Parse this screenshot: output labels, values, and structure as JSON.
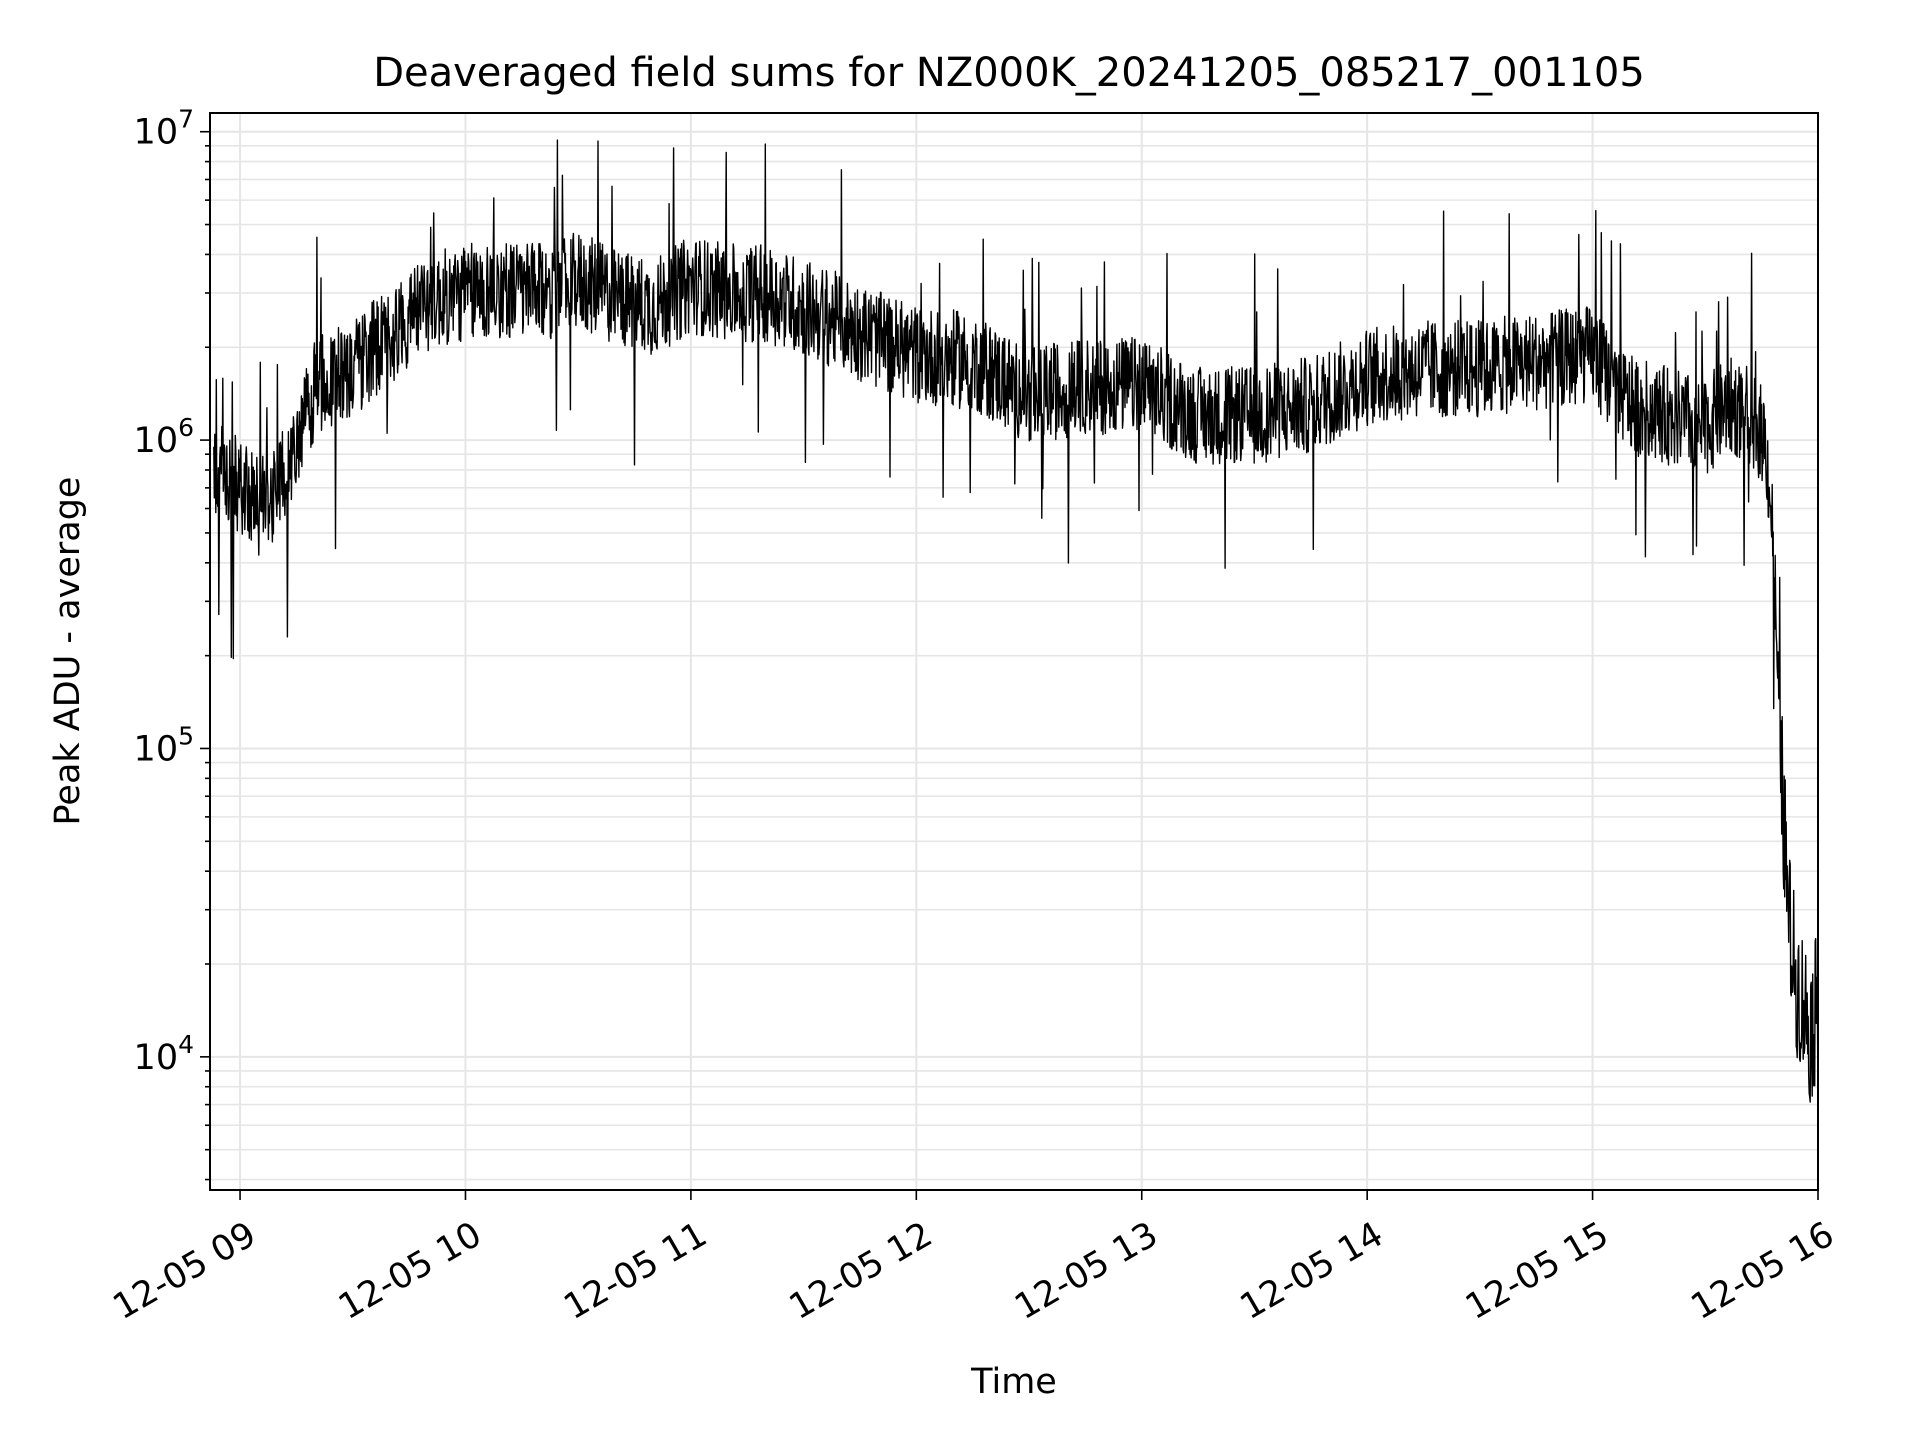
{
  "chart_data": {
    "type": "line",
    "title": "Deaveraged field sums for NZ000K_20241205_085217_001105",
    "xlabel": "Time",
    "ylabel": "Peak ADU - average",
    "xscale": "time",
    "yscale": "log",
    "xlim": [
      "2024-12-05 08:52",
      "2024-12-05 16:00"
    ],
    "ylim": [
      3700,
      11500000
    ],
    "grid": true,
    "legend": "none",
    "x_tick_labels": [
      "12-05 09",
      "12-05 10",
      "12-05 11",
      "12-05 12",
      "12-05 13",
      "12-05 14",
      "12-05 15",
      "12-05 16"
    ],
    "y_ticks": [
      {
        "base": "10",
        "exp": "4",
        "value": 10000
      },
      {
        "base": "10",
        "exp": "5",
        "value": 100000
      },
      {
        "base": "10",
        "exp": "6",
        "value": 1000000
      },
      {
        "base": "10",
        "exp": "7",
        "value": 10000000
      }
    ],
    "series": [
      {
        "color": "#000000",
        "x": [
          "2024-12-05 08:53",
          "2024-12-05 09:00",
          "2024-12-05 09:05",
          "2024-12-05 09:10",
          "2024-12-05 09:15",
          "2024-12-05 09:20",
          "2024-12-05 09:30",
          "2024-12-05 09:40",
          "2024-12-05 09:50",
          "2024-12-05 10:00",
          "2024-12-05 10:10",
          "2024-12-05 10:20",
          "2024-12-05 10:30",
          "2024-12-05 10:40",
          "2024-12-05 10:50",
          "2024-12-05 11:00",
          "2024-12-05 11:10",
          "2024-12-05 11:20",
          "2024-12-05 11:30",
          "2024-12-05 11:40",
          "2024-12-05 11:50",
          "2024-12-05 12:00",
          "2024-12-05 12:15",
          "2024-12-05 12:30",
          "2024-12-05 12:45",
          "2024-12-05 13:00",
          "2024-12-05 13:15",
          "2024-12-05 13:30",
          "2024-12-05 13:45",
          "2024-12-05 14:00",
          "2024-12-05 14:15",
          "2024-12-05 14:30",
          "2024-12-05 14:45",
          "2024-12-05 15:00",
          "2024-12-05 15:10",
          "2024-12-05 15:20",
          "2024-12-05 15:30",
          "2024-12-05 15:36",
          "2024-12-05 15:42",
          "2024-12-05 15:46",
          "2024-12-05 15:48",
          "2024-12-05 15:50",
          "2024-12-05 15:52",
          "2024-12-05 15:54",
          "2024-12-05 15:56",
          "2024-12-05 15:58",
          "2024-12-05 16:00"
        ],
        "y": [
          800000,
          700000,
          600000,
          700000,
          900000,
          1500000,
          1700000,
          2200000,
          2800000,
          3000000,
          3100000,
          3000000,
          3300000,
          2900000,
          2700000,
          3200000,
          3000000,
          3000000,
          2700000,
          2400000,
          2100000,
          1900000,
          1800000,
          1400000,
          1500000,
          1500000,
          1200000,
          1200000,
          1300000,
          1600000,
          1700000,
          1700000,
          1800000,
          1900000,
          1300000,
          1200000,
          1100000,
          1300000,
          1200000,
          1000000,
          500000,
          100000,
          30000,
          18000,
          15000,
          12000,
          15000
        ]
      }
    ]
  }
}
